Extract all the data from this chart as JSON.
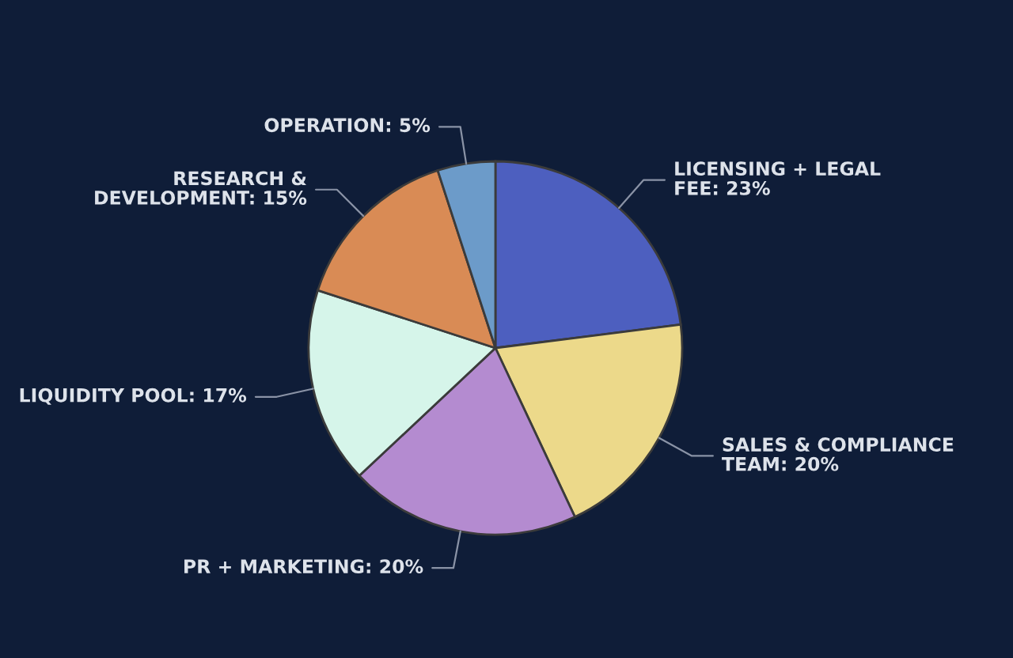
{
  "chart_data": {
    "type": "pie",
    "categories": [
      "LICENSING + LEGAL FEE",
      "SALES & COMPLIANCE TEAM",
      "PR + MARKETING",
      "LIQUIDITY POOL",
      "RESEARCH & DEVELOPMENT",
      "OPERATION"
    ],
    "values": [
      23,
      20,
      20,
      17,
      15,
      5
    ],
    "value_labels": [
      "23%",
      "20%",
      "20%",
      "17%",
      "15%",
      "5%"
    ],
    "colors": [
      "#4d5fbf",
      "#ecd98a",
      "#b48bd0",
      "#d6f5ea",
      "#d98b55",
      "#6c9bc9"
    ]
  }
}
